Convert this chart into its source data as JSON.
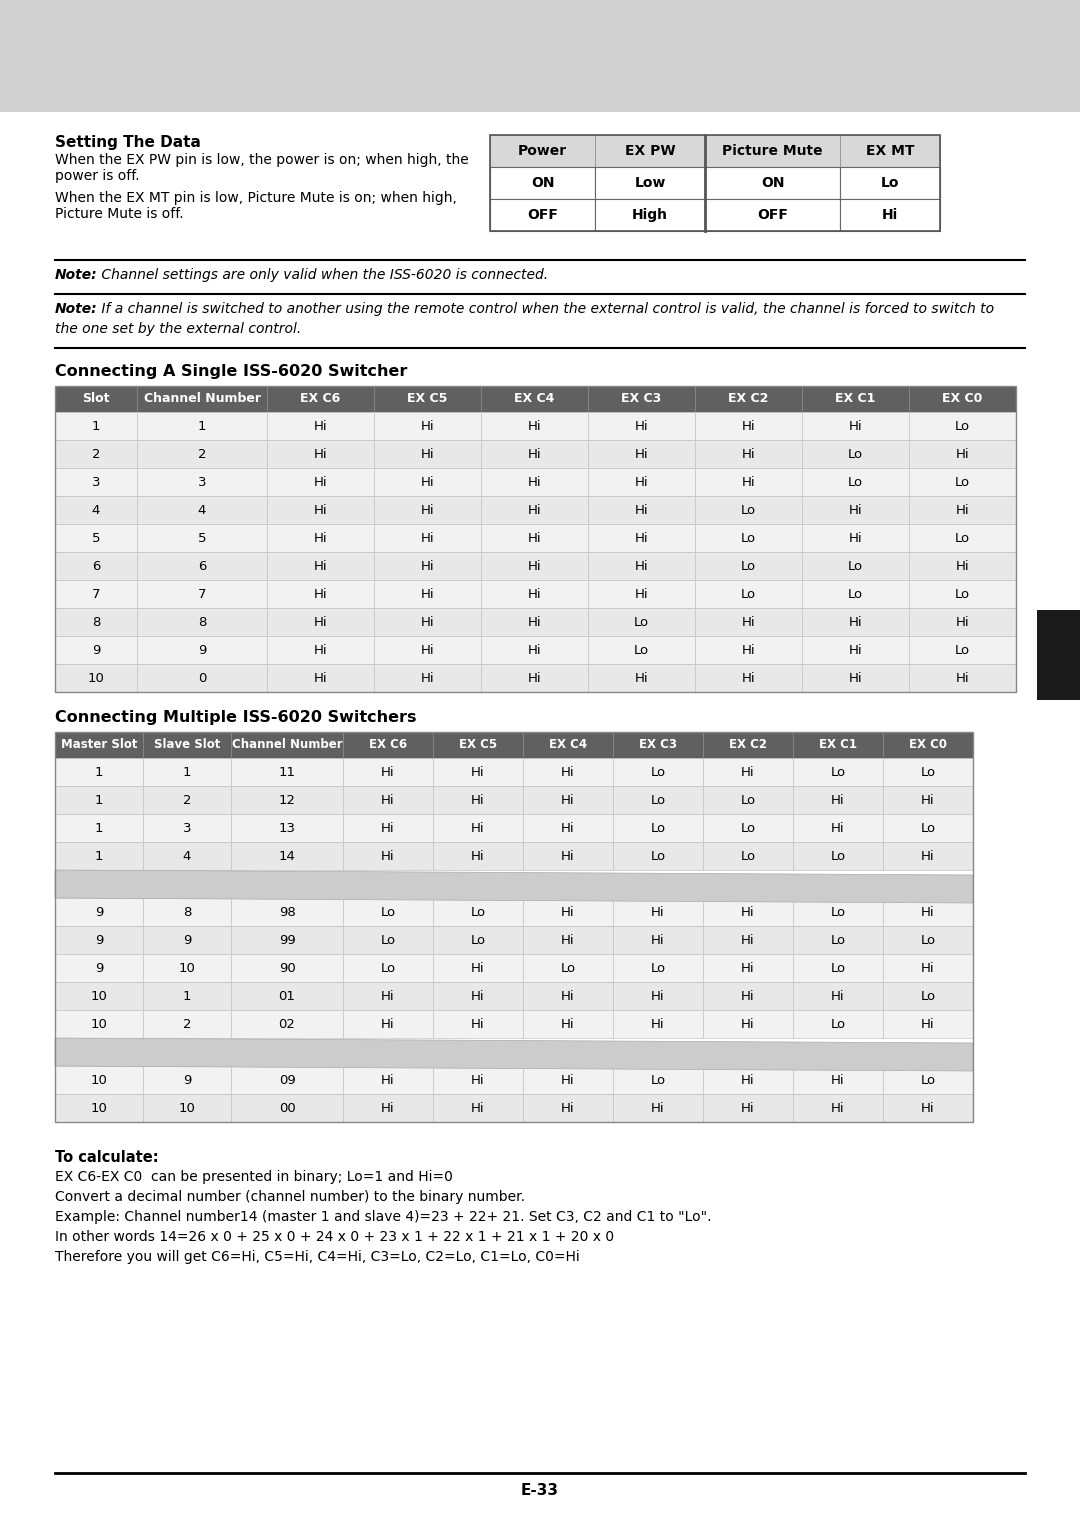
{
  "page_bg": "#d0d0d0",
  "content_bg": "#ffffff",
  "title": "Setting The Data",
  "text1a": "When the EX PW pin is low, the power is on; when high, the",
  "text1b": "power is off.",
  "text2a": "When the EX MT pin is low, Picture Mute is on; when high,",
  "text2b": "Picture Mute is off.",
  "note1_bold": "Note:",
  "note1_rest": " Channel settings are only valid when the ISS-6020 is connected.",
  "note2_bold": "Note:",
  "note2_rest": " If a channel is switched to another using the remote control when the external control is valid, the channel is forced to switch to",
  "note2_rest2": "the one set by the external control.",
  "small_table_headers": [
    "Power",
    "EX PW",
    "Picture Mute",
    "EX MT"
  ],
  "small_table_rows": [
    [
      "ON",
      "Low",
      "ON",
      "Lo"
    ],
    [
      "OFF",
      "High",
      "OFF",
      "Hi"
    ]
  ],
  "single_title": "Connecting A Single ISS-6020 Switcher",
  "single_headers": [
    "Slot",
    "Channel Number",
    "EX C6",
    "EX C5",
    "EX C4",
    "EX C3",
    "EX C2",
    "EX C1",
    "EX C0"
  ],
  "single_rows": [
    [
      "1",
      "1",
      "Hi",
      "Hi",
      "Hi",
      "Hi",
      "Hi",
      "Hi",
      "Lo"
    ],
    [
      "2",
      "2",
      "Hi",
      "Hi",
      "Hi",
      "Hi",
      "Hi",
      "Lo",
      "Hi"
    ],
    [
      "3",
      "3",
      "Hi",
      "Hi",
      "Hi",
      "Hi",
      "Hi",
      "Lo",
      "Lo"
    ],
    [
      "4",
      "4",
      "Hi",
      "Hi",
      "Hi",
      "Hi",
      "Lo",
      "Hi",
      "Hi"
    ],
    [
      "5",
      "5",
      "Hi",
      "Hi",
      "Hi",
      "Hi",
      "Lo",
      "Hi",
      "Lo"
    ],
    [
      "6",
      "6",
      "Hi",
      "Hi",
      "Hi",
      "Hi",
      "Lo",
      "Lo",
      "Hi"
    ],
    [
      "7",
      "7",
      "Hi",
      "Hi",
      "Hi",
      "Hi",
      "Lo",
      "Lo",
      "Lo"
    ],
    [
      "8",
      "8",
      "Hi",
      "Hi",
      "Hi",
      "Lo",
      "Hi",
      "Hi",
      "Hi"
    ],
    [
      "9",
      "9",
      "Hi",
      "Hi",
      "Hi",
      "Lo",
      "Hi",
      "Hi",
      "Lo"
    ],
    [
      "10",
      "0",
      "Hi",
      "Hi",
      "Hi",
      "Hi",
      "Hi",
      "Hi",
      "Hi"
    ]
  ],
  "multi_title": "Connecting Multiple ISS-6020 Switchers",
  "multi_headers": [
    "Master Slot",
    "Slave Slot",
    "Channel Number",
    "EX C6",
    "EX C5",
    "EX C4",
    "EX C3",
    "EX C2",
    "EX C1",
    "EX C0"
  ],
  "multi_rows_group1": [
    [
      "1",
      "1",
      "11",
      "Hi",
      "Hi",
      "Hi",
      "Lo",
      "Hi",
      "Lo",
      "Lo"
    ],
    [
      "1",
      "2",
      "12",
      "Hi",
      "Hi",
      "Hi",
      "Lo",
      "Lo",
      "Hi",
      "Hi"
    ],
    [
      "1",
      "3",
      "13",
      "Hi",
      "Hi",
      "Hi",
      "Lo",
      "Lo",
      "Hi",
      "Lo"
    ],
    [
      "1",
      "4",
      "14",
      "Hi",
      "Hi",
      "Hi",
      "Lo",
      "Lo",
      "Lo",
      "Hi"
    ]
  ],
  "multi_rows_group2": [
    [
      "9",
      "8",
      "98",
      "Lo",
      "Lo",
      "Hi",
      "Hi",
      "Hi",
      "Lo",
      "Hi"
    ],
    [
      "9",
      "9",
      "99",
      "Lo",
      "Lo",
      "Hi",
      "Hi",
      "Hi",
      "Lo",
      "Lo"
    ],
    [
      "9",
      "10",
      "90",
      "Lo",
      "Hi",
      "Lo",
      "Lo",
      "Hi",
      "Lo",
      "Hi"
    ],
    [
      "10",
      "1",
      "01",
      "Hi",
      "Hi",
      "Hi",
      "Hi",
      "Hi",
      "Hi",
      "Lo"
    ],
    [
      "10",
      "2",
      "02",
      "Hi",
      "Hi",
      "Hi",
      "Hi",
      "Hi",
      "Lo",
      "Hi"
    ]
  ],
  "multi_rows_group3": [
    [
      "10",
      "9",
      "09",
      "Hi",
      "Hi",
      "Hi",
      "Lo",
      "Hi",
      "Hi",
      "Lo"
    ],
    [
      "10",
      "10",
      "00",
      "Hi",
      "Hi",
      "Hi",
      "Hi",
      "Hi",
      "Hi",
      "Hi"
    ]
  ],
  "calc_title": "To calculate:",
  "calc_lines": [
    "EX C6-EX C0  can be presented in binary; Lo=1 and Hi=0",
    "Convert a decimal number (channel number) to the binary number.",
    "Example: Channel number14 (master 1 and slave 4)=23 + 22+ 21. Set C3, C2 and C1 to \"Lo\".",
    "In other words 14=26 x 0 + 25 x 0 + 24 x 0 + 23 x 1 + 22 x 1 + 21 x 1 + 20 x 0",
    "Therefore you will get C6=Hi, C5=Hi, C4=Hi, C3=Lo, C2=Lo, C1=Lo, C0=Hi"
  ],
  "page_number": "E-33"
}
